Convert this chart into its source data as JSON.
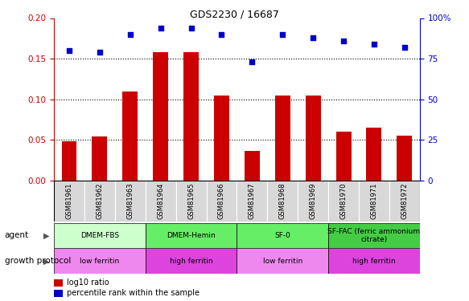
{
  "title": "GDS2230 / 16687",
  "samples": [
    "GSM81961",
    "GSM81962",
    "GSM81963",
    "GSM81964",
    "GSM81965",
    "GSM81966",
    "GSM81967",
    "GSM81968",
    "GSM81969",
    "GSM81970",
    "GSM81971",
    "GSM81972"
  ],
  "log10_ratio": [
    0.048,
    0.054,
    0.11,
    0.158,
    0.158,
    0.105,
    0.037,
    0.105,
    0.105,
    0.06,
    0.065,
    0.055
  ],
  "percentile": [
    80,
    79,
    90,
    94,
    94,
    90,
    73,
    90,
    88,
    86,
    84,
    82
  ],
  "bar_color": "#cc0000",
  "dot_color": "#0000cc",
  "ylim_left": [
    0,
    0.2
  ],
  "ylim_right": [
    0,
    100
  ],
  "yticks_left": [
    0,
    0.05,
    0.1,
    0.15,
    0.2
  ],
  "yticks_right": [
    0,
    25,
    50,
    75,
    100
  ],
  "agent_groups": [
    {
      "label": "DMEM-FBS",
      "start": 0,
      "end": 3,
      "color": "#ccffcc"
    },
    {
      "label": "DMEM-Hemin",
      "start": 3,
      "end": 6,
      "color": "#66ee66"
    },
    {
      "label": "SF-0",
      "start": 6,
      "end": 9,
      "color": "#66ee66"
    },
    {
      "label": "SF-FAC (ferric ammonium\ncitrate)",
      "start": 9,
      "end": 12,
      "color": "#44cc44"
    }
  ],
  "growth_groups": [
    {
      "label": "low ferritin",
      "start": 0,
      "end": 3,
      "color": "#ee88ee"
    },
    {
      "label": "high ferritin",
      "start": 3,
      "end": 6,
      "color": "#dd44dd"
    },
    {
      "label": "low ferritin",
      "start": 6,
      "end": 9,
      "color": "#ee88ee"
    },
    {
      "label": "high ferritin",
      "start": 9,
      "end": 12,
      "color": "#dd44dd"
    }
  ],
  "legend_red_label": "log10 ratio",
  "legend_blue_label": "percentile rank within the sample"
}
